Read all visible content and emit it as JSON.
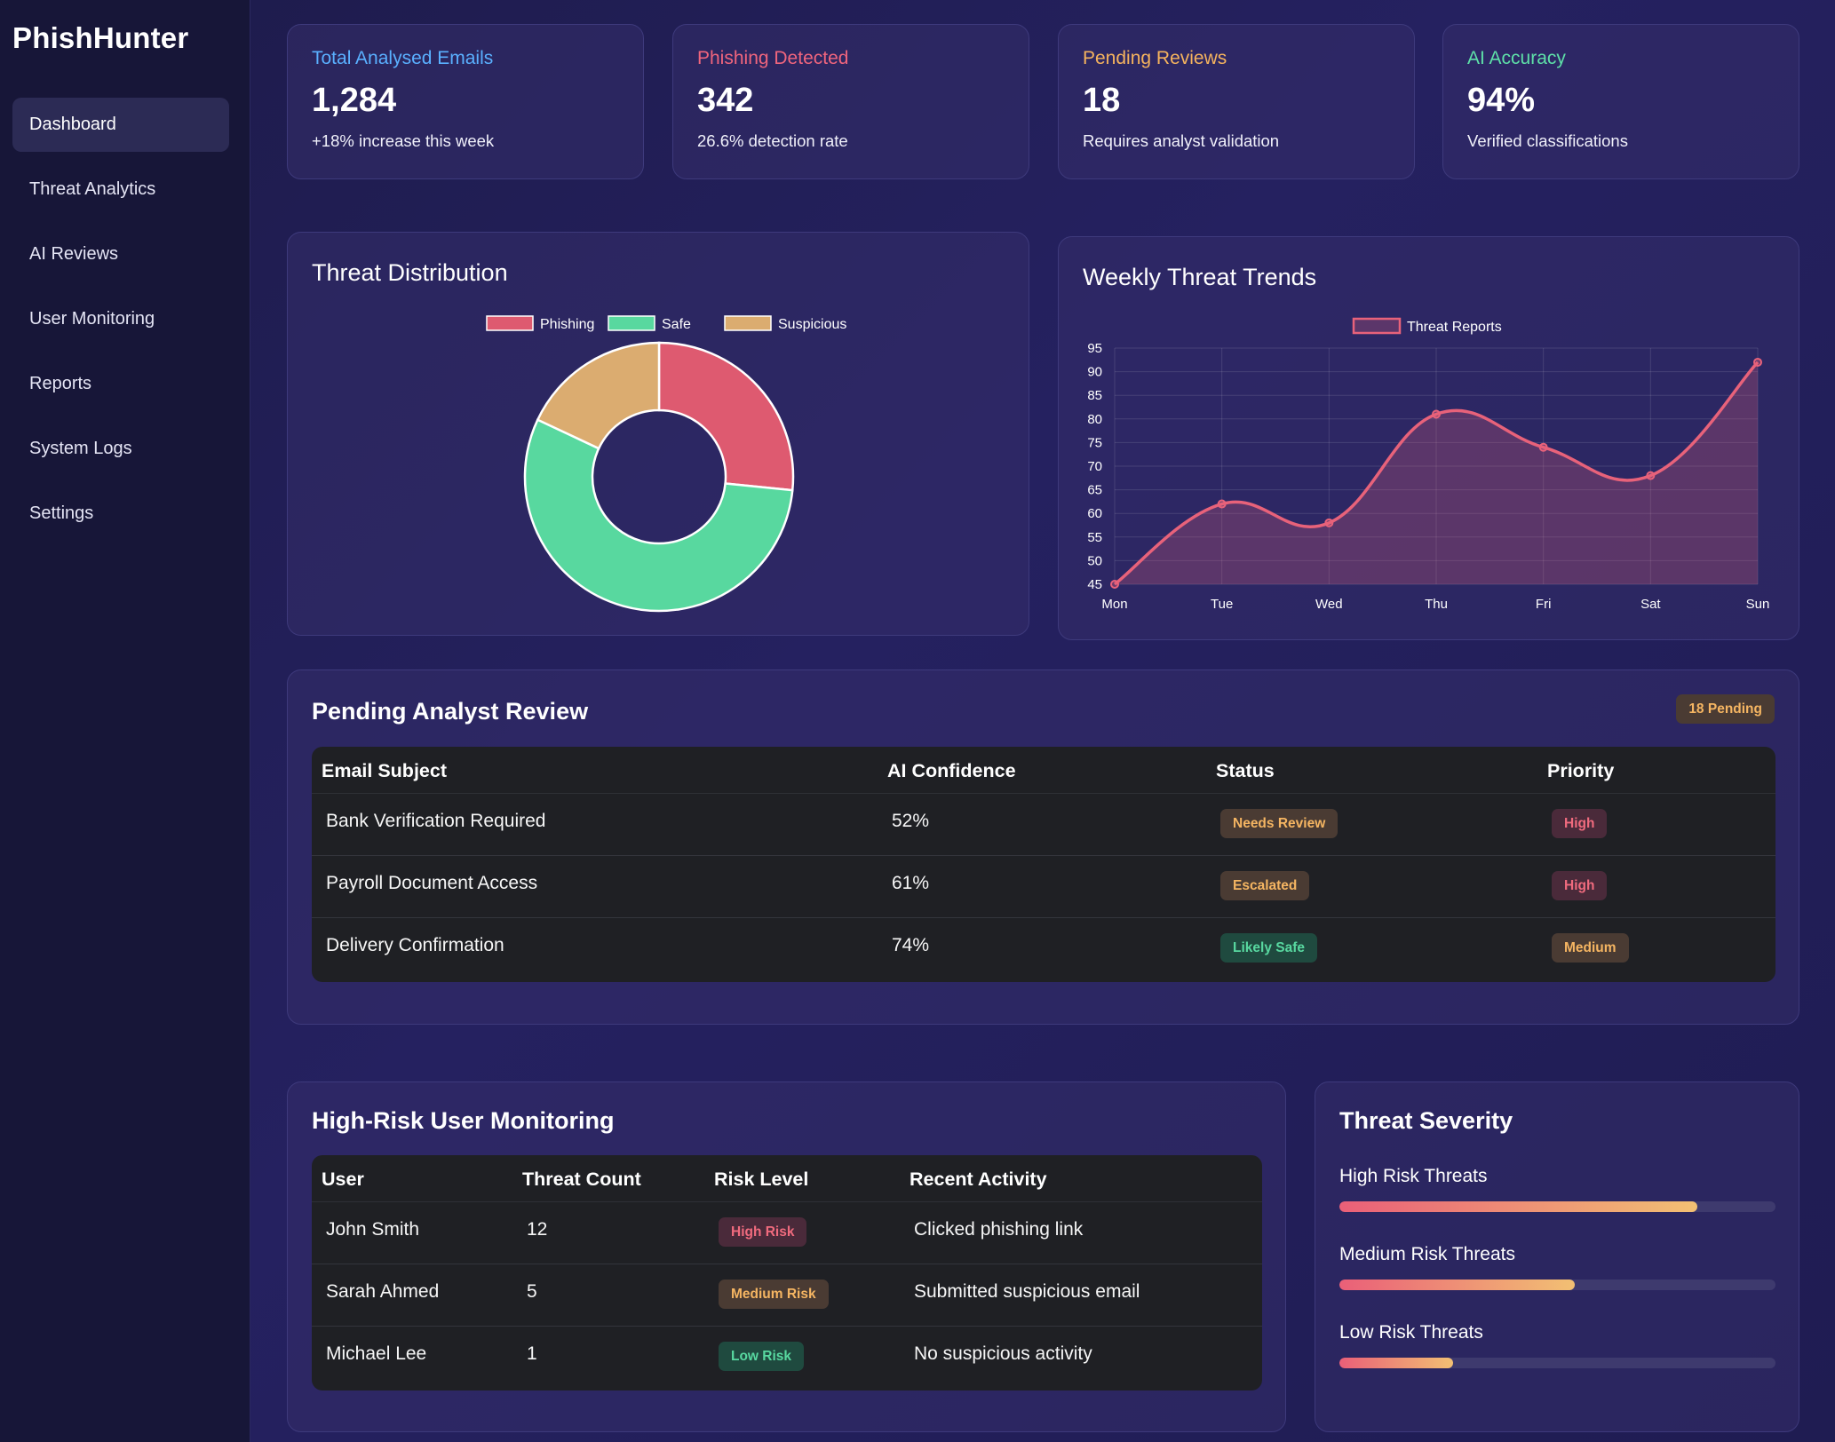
{
  "brand": "PhishHunter",
  "nav": [
    "Dashboard",
    "Threat Analytics",
    "AI Reviews",
    "User Monitoring",
    "Reports",
    "System Logs",
    "Settings"
  ],
  "stats": [
    {
      "label": "Total Analysed Emails",
      "value": "1,284",
      "sub": "+18% increase this week",
      "color": "#5ab0ff"
    },
    {
      "label": "Phishing Detected",
      "value": "342",
      "sub": "26.6% detection rate",
      "color": "#f0657d"
    },
    {
      "label": "Pending Reviews",
      "value": "18",
      "sub": "Requires analyst validation",
      "color": "#f5b35e"
    },
    {
      "label": "AI Accuracy",
      "value": "94%",
      "sub": "Verified classifications",
      "color": "#5ee0a8"
    }
  ],
  "threat_distribution": {
    "title": "Threat Distribution",
    "legend": [
      "Phishing",
      "Safe",
      "Suspicious"
    ]
  },
  "weekly_trends": {
    "title": "Weekly Threat Trends"
  },
  "chart_data": [
    {
      "type": "pie",
      "title": "Threat Distribution",
      "categories": [
        "Phishing",
        "Safe",
        "Suspicious"
      ],
      "values": [
        26.6,
        55.4,
        18.0
      ],
      "colors": [
        "#de5a70",
        "#58d89f",
        "#dbac70"
      ],
      "donut": true,
      "legend": "top"
    },
    {
      "type": "line",
      "title": "Weekly Threat Trends",
      "x": [
        "Mon",
        "Tue",
        "Wed",
        "Thu",
        "Fri",
        "Sat",
        "Sun"
      ],
      "series": [
        {
          "name": "Threat Reports",
          "values": [
            45,
            62,
            58,
            81,
            74,
            68,
            92
          ],
          "color": "#e8627a"
        }
      ],
      "ylim": [
        45,
        95
      ],
      "yticks": [
        45,
        50,
        55,
        60,
        65,
        70,
        75,
        80,
        85,
        90,
        95
      ],
      "grid": true,
      "fill": true,
      "legend": "top"
    }
  ],
  "pending_review": {
    "title": "Pending Analyst Review",
    "badge": "18 Pending",
    "headers": [
      "Email Subject",
      "AI Confidence",
      "Status",
      "Priority"
    ],
    "rows": [
      {
        "subject": "Bank Verification Required",
        "confidence": "52%",
        "status": "Needs Review",
        "status_tone": "orange",
        "priority": "High",
        "priority_tone": "red"
      },
      {
        "subject": "Payroll Document Access",
        "confidence": "61%",
        "status": "Escalated",
        "status_tone": "orange",
        "priority": "High",
        "priority_tone": "red"
      },
      {
        "subject": "Delivery Confirmation",
        "confidence": "74%",
        "status": "Likely Safe",
        "status_tone": "green",
        "priority": "Medium",
        "priority_tone": "orange"
      }
    ]
  },
  "user_monitoring": {
    "title": "High-Risk User Monitoring",
    "headers": [
      "User",
      "Threat Count",
      "Risk Level",
      "Recent Activity"
    ],
    "rows": [
      {
        "user": "John Smith",
        "count": "12",
        "risk": "High Risk",
        "tone": "red",
        "activity": "Clicked phishing link"
      },
      {
        "user": "Sarah Ahmed",
        "count": "5",
        "risk": "Medium Risk",
        "tone": "orange",
        "activity": "Submitted suspicious email"
      },
      {
        "user": "Michael Lee",
        "count": "1",
        "risk": "Low Risk",
        "tone": "green",
        "activity": "No suspicious activity"
      }
    ]
  },
  "severity": {
    "title": "Threat Severity",
    "items": [
      {
        "label": "High Risk Threats",
        "level": 0.82
      },
      {
        "label": "Medium Risk Threats",
        "level": 0.54
      },
      {
        "label": "Low Risk Threats",
        "level": 0.26
      }
    ]
  }
}
